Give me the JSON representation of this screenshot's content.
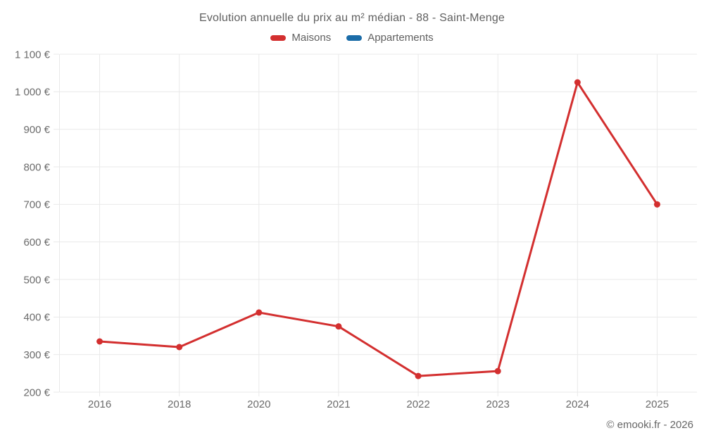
{
  "chart_data": {
    "type": "line",
    "title": "Evolution annuelle du prix au m² médian - 88 - Saint-Menge",
    "categories": [
      "2016",
      "2018",
      "2020",
      "2021",
      "2022",
      "2023",
      "2024",
      "2025"
    ],
    "series": [
      {
        "name": "Maisons",
        "color": "#d32f2f",
        "values": [
          335,
          320,
          412,
          375,
          243,
          256,
          1025,
          700
        ]
      },
      {
        "name": "Appartements",
        "color": "#1b6ca8",
        "values": []
      }
    ],
    "y_ticks": [
      {
        "value": 200,
        "label": "200 €"
      },
      {
        "value": 300,
        "label": "300 €"
      },
      {
        "value": 400,
        "label": "400 €"
      },
      {
        "value": 500,
        "label": "500 €"
      },
      {
        "value": 600,
        "label": "600 €"
      },
      {
        "value": 700,
        "label": "700 €"
      },
      {
        "value": 800,
        "label": "800 €"
      },
      {
        "value": 900,
        "label": "900 €"
      },
      {
        "value": 1000,
        "label": "1 000 €"
      },
      {
        "value": 1100,
        "label": "1 100 €"
      }
    ],
    "ylim": [
      200,
      1100
    ],
    "xlabel": "",
    "ylabel": "",
    "grid": true,
    "legend_position": "top"
  },
  "footer": {
    "text": "© emooki.fr - 2026"
  },
  "colors": {
    "background": "#ffffff",
    "grid": "#e9e9e9",
    "axis_text": "#6b6b6b",
    "title_text": "#606060",
    "maisons": "#d32f2f",
    "appartements": "#1b6ca8"
  }
}
